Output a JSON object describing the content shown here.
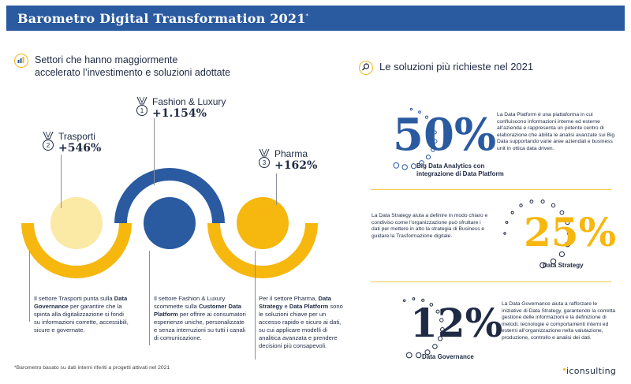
{
  "header": {
    "title": "Barometro Digital Transformation 2021",
    "title_mark": "*"
  },
  "left_section": {
    "heading_line1": "Settori che hanno maggiormente",
    "heading_line2": "accelerato l’investimento e soluzioni adottate",
    "icon": "bar-chart-icon",
    "sectors": [
      {
        "rank": "1",
        "name": "Fashion & Luxury",
        "value": "+1.154%"
      },
      {
        "rank": "2",
        "name": "Trasporti",
        "value": "+546%"
      },
      {
        "rank": "3",
        "name": "Pharma",
        "value": "+162%"
      }
    ],
    "descriptions": {
      "trasporti": [
        "Il settore Trasporti punta sulla ",
        "Data Governance",
        " per garantire che la spinta alla digitalizzazione si fondi su informazioni corrette, accessibili, sicure e governate."
      ],
      "fashion": [
        "Il settore Fashion & Luxury scommette sulla ",
        "Customer Data Platform",
        " per offrire ai consumatori esperienze uniche, personalizzate e senza interruzioni su tutti i canali di comunicazione."
      ],
      "pharma": [
        "Per il settore Pharma, ",
        "Data Strategy",
        " e ",
        "Data Platform",
        " sono le soluzioni chiave per un accesso rapido e sicuro ai dati, su cui applicare modelli di analitica avanzata e prendere decisioni più consapevoli."
      ]
    }
  },
  "right_section": {
    "heading": "Le soluzioni più richieste nel 2021",
    "icon": "magnifier-icon",
    "solutions": [
      {
        "pct": "50%",
        "label": "Big Data Analytics con integrazione di Data Platform",
        "desc": "La Data Platform è una piattaforma in cui confluiscono informazioni interne ed esterne all’azienda e rappresenta un potente centro di elaborazione che abilita le analisi avanzate sui Big Data supportando varie aree aziendali e business unit in ottica data driven."
      },
      {
        "pct": "25%",
        "label": "Data Strategy",
        "desc": "La Data Strategy aiuta a definire in modo chiaro e condiviso come l’organizzazione può sfruttare i dati per mettere in atto la strategia di Business e guidare la Trasformazione digitale."
      },
      {
        "pct": "12%",
        "label": "Data Governance",
        "desc": "La Data Governance aiuta a rafforzare le iniziative di Data Strategy, garantendo la corretta gestione delle informazioni e la definizione di metodi, tecnologie e comportamenti interni ed esterni all’organizzazione nella valutazione, produzione, controllo e analisi dei dati."
      }
    ]
  },
  "colors": {
    "blue": "#2a5aa0",
    "yellow": "#f6b70f",
    "navy": "#1f2a44",
    "pale_yellow": "#fbe9a6"
  },
  "footer": {
    "note": "*Barometro basato su dati interni riferiti a progetti attivati nel 2021",
    "logo": "iconsulting"
  }
}
